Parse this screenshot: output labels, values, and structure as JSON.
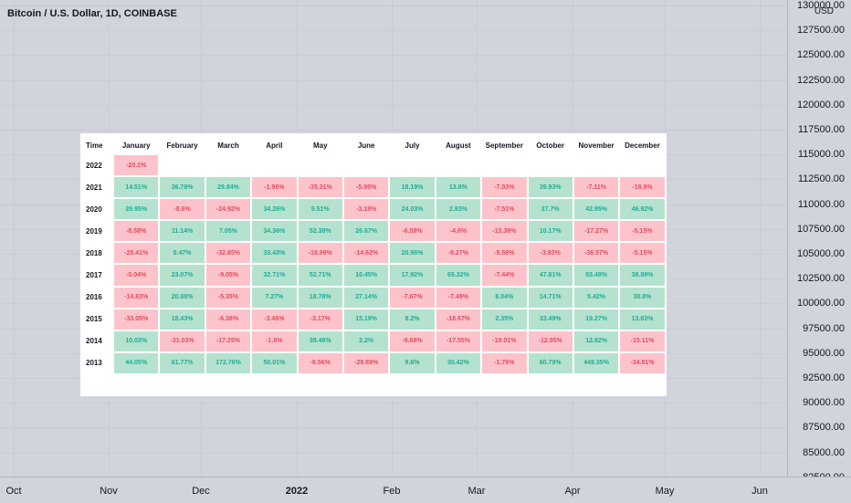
{
  "chart": {
    "title": "Bitcoin / U.S. Dollar, 1D, COINBASE",
    "currency": "USD",
    "price_labels": [
      "130000.00",
      "127500.00",
      "125000.00",
      "122500.00",
      "120000.00",
      "117500.00",
      "115000.00",
      "112500.00",
      "110000.00",
      "107500.00",
      "105000.00",
      "102500.00",
      "100000.00",
      "97500.00",
      "95000.00",
      "92500.00",
      "90000.00",
      "87500.00",
      "85000.00",
      "82500.00"
    ],
    "time_labels": [
      {
        "label": "Oct",
        "bold": false
      },
      {
        "label": "Nov",
        "bold": false
      },
      {
        "label": "Dec",
        "bold": false
      },
      {
        "label": "2022",
        "bold": true
      },
      {
        "label": "Feb",
        "bold": false
      },
      {
        "label": "Mar",
        "bold": false
      },
      {
        "label": "Apr",
        "bold": false
      },
      {
        "label": "May",
        "bold": false
      },
      {
        "label": "Jun",
        "bold": false
      }
    ]
  },
  "table": {
    "time_header": "Time",
    "months": [
      "January",
      "February",
      "March",
      "April",
      "May",
      "June",
      "July",
      "August",
      "September",
      "October",
      "November",
      "December"
    ],
    "rows": [
      {
        "year": "2022",
        "values": [
          "-20.1%",
          "",
          "",
          "",
          "",
          "",
          "",
          "",
          "",
          "",
          "",
          ""
        ]
      },
      {
        "year": "2021",
        "values": [
          "14.51%",
          "36.78%",
          "29.84%",
          "-1.98%",
          "-35.31%",
          "-5.95%",
          "18.19%",
          "13.8%",
          "-7.03%",
          "39.93%",
          "-7.11%",
          "-18.9%"
        ]
      },
      {
        "year": "2020",
        "values": [
          "29.95%",
          "-8.6%",
          "-24.92%",
          "34.26%",
          "9.51%",
          "-3.18%",
          "24.03%",
          "2.83%",
          "-7.51%",
          "27.7%",
          "42.95%",
          "46.92%"
        ]
      },
      {
        "year": "2019",
        "values": [
          "-8.58%",
          "11.14%",
          "7.05%",
          "34.36%",
          "52.38%",
          "26.67%",
          "-6.59%",
          "-4.6%",
          "-13.38%",
          "10.17%",
          "-17.27%",
          "-5.15%"
        ]
      },
      {
        "year": "2018",
        "values": [
          "-25.41%",
          "0.47%",
          "-32.85%",
          "33.43%",
          "-18.99%",
          "-14.62%",
          "20.96%",
          "-9.27%",
          "-5.58%",
          "-3.83%",
          "-36.57%",
          "-5.15%"
        ]
      },
      {
        "year": "2017",
        "values": [
          "-0.04%",
          "23.07%",
          "-9.05%",
          "32.71%",
          "52.71%",
          "10.45%",
          "17.92%",
          "65.32%",
          "-7.44%",
          "47.81%",
          "53.48%",
          "38.89%"
        ]
      },
      {
        "year": "2016",
        "values": [
          "-14.83%",
          "20.08%",
          "-5.35%",
          "7.27%",
          "18.78%",
          "27.14%",
          "-7.67%",
          "-7.49%",
          "6.04%",
          "14.71%",
          "5.42%",
          "30.8%"
        ]
      },
      {
        "year": "2015",
        "values": [
          "-33.05%",
          "18.43%",
          "-6.38%",
          "-3.46%",
          "-3.17%",
          "15.19%",
          "8.2%",
          "-18.67%",
          "2.35%",
          "33.49%",
          "19.27%",
          "13.83%"
        ]
      },
      {
        "year": "2014",
        "values": [
          "10.03%",
          "-31.03%",
          "-17.25%",
          "-1.6%",
          "39.46%",
          "2.2%",
          "-9.69%",
          "-17.55%",
          "-19.01%",
          "-12.95%",
          "12.82%",
          "-15.11%"
        ]
      },
      {
        "year": "2013",
        "values": [
          "44.05%",
          "61.77%",
          "172.76%",
          "50.01%",
          "-8.56%",
          "-29.89%",
          "9.6%",
          "30.42%",
          "-1.76%",
          "60.79%",
          "449.35%",
          "-34.81%"
        ]
      }
    ]
  },
  "colors": {
    "positive_bg": "#b4e2ce",
    "positive_text": "#22ab94",
    "negative_bg": "#fcc3ca",
    "negative_text": "#e04d5f"
  }
}
